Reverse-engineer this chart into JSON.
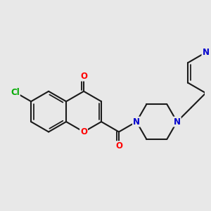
{
  "background_color": "#e8e8e8",
  "bond_color": "#1a1a1a",
  "bond_width": 1.5,
  "atom_colors": {
    "O": "#ff0000",
    "N": "#0000cc",
    "Cl": "#00aa00",
    "C": "#1a1a1a"
  },
  "font_size": 8.5,
  "figsize": [
    3.0,
    3.0
  ],
  "dpi": 100
}
